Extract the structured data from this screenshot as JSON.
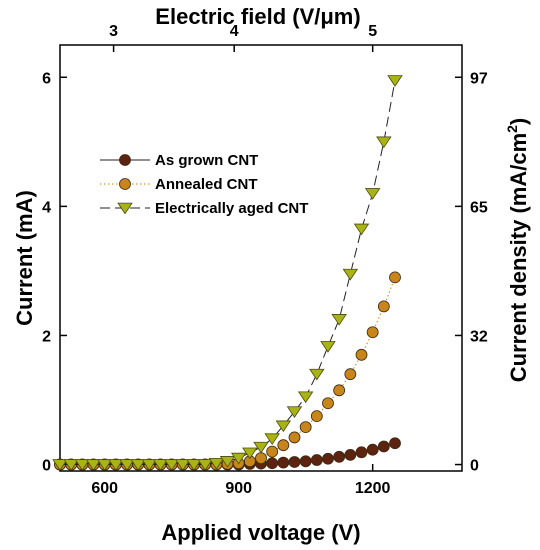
{
  "chart_data": {
    "type": "scatter",
    "x_axis": {
      "label": "Applied voltage (V)",
      "range": [
        500,
        1400
      ],
      "ticks": [
        600,
        900,
        1200
      ]
    },
    "y_axis": {
      "label": "Current (mA)",
      "range": [
        -0.1,
        6.5
      ],
      "ticks": [
        0,
        2,
        4,
        6
      ]
    },
    "top_axis": {
      "label": "Electric field (V/μm)",
      "ticks": [
        {
          "label": "3",
          "at_voltage": 620
        },
        {
          "label": "4",
          "at_voltage": 890
        },
        {
          "label": "5",
          "at_voltage": 1200
        }
      ]
    },
    "right_axis": {
      "label": "Current density (mA/cm",
      "superscript": "2",
      "label_end": ")",
      "ticks": [
        {
          "label": "0",
          "at_current": 0
        },
        {
          "label": "32",
          "at_current": 2
        },
        {
          "label": "65",
          "at_current": 4
        },
        {
          "label": "97",
          "at_current": 6
        }
      ]
    },
    "grid": false,
    "legend_position": "upper-left",
    "series": [
      {
        "name": "As grown CNT",
        "marker": "circle",
        "line_style": "solid",
        "color": "#5c2310",
        "x": [
          500,
          525,
          550,
          575,
          600,
          625,
          650,
          675,
          700,
          725,
          750,
          775,
          800,
          825,
          850,
          875,
          900,
          925,
          950,
          975,
          1000,
          1025,
          1050,
          1075,
          1100,
          1125,
          1150,
          1175,
          1200,
          1225,
          1250
        ],
        "y": [
          0,
          0,
          0,
          0,
          0,
          0,
          0,
          0,
          0,
          0,
          0,
          0,
          0,
          0,
          0,
          0,
          0,
          0.01,
          0.015,
          0.02,
          0.03,
          0.04,
          0.05,
          0.07,
          0.09,
          0.12,
          0.15,
          0.19,
          0.23,
          0.28,
          0.33
        ]
      },
      {
        "name": "Annealed CNT",
        "marker": "circle",
        "line_style": "dotted",
        "color": "#c8861a",
        "x": [
          500,
          525,
          550,
          575,
          600,
          625,
          650,
          675,
          700,
          725,
          750,
          775,
          800,
          825,
          850,
          875,
          900,
          925,
          950,
          975,
          1000,
          1025,
          1050,
          1075,
          1100,
          1125,
          1150,
          1175,
          1200,
          1225,
          1250
        ],
        "y": [
          0,
          0,
          0,
          0,
          0,
          0,
          0,
          0,
          0,
          0,
          0,
          0,
          0,
          0,
          0,
          0.01,
          0.02,
          0.05,
          0.1,
          0.2,
          0.3,
          0.42,
          0.58,
          0.75,
          0.95,
          1.15,
          1.4,
          1.7,
          2.05,
          2.45,
          2.9
        ]
      },
      {
        "name": "Electrically aged CNT",
        "marker": "triangle-down",
        "line_style": "dashed",
        "color": "#a9b414",
        "x": [
          500,
          525,
          550,
          575,
          600,
          625,
          650,
          675,
          700,
          725,
          750,
          775,
          800,
          825,
          850,
          875,
          900,
          925,
          950,
          975,
          1000,
          1025,
          1050,
          1075,
          1100,
          1125,
          1150,
          1175,
          1200,
          1225,
          1250
        ],
        "y": [
          0,
          0,
          0,
          0,
          0,
          0,
          0,
          0,
          0,
          0,
          0,
          0,
          0,
          0,
          0.02,
          0.05,
          0.1,
          0.18,
          0.27,
          0.4,
          0.6,
          0.82,
          1.05,
          1.4,
          1.83,
          2.25,
          2.95,
          3.65,
          4.2,
          5.0,
          5.95
        ]
      }
    ]
  }
}
